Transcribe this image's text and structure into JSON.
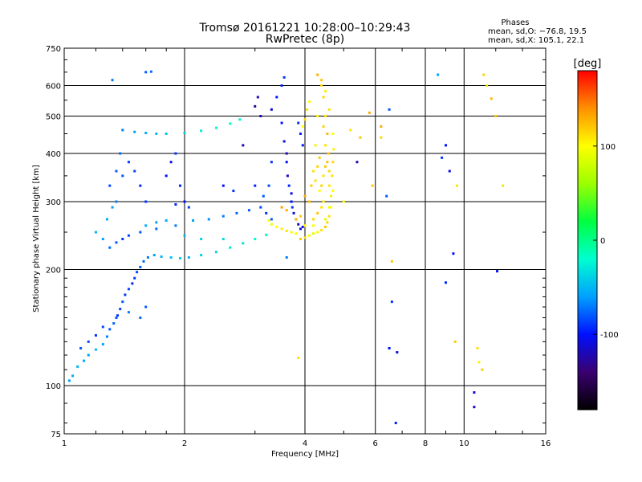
{
  "chart_data": {
    "type": "scatter",
    "title": "Tromsø 20161221 10:28:00–10:29:43",
    "subtitle": "RwPretec (8p)",
    "xlabel": "Frequency [MHz]",
    "ylabel": "Stationary phase Virtual Height [km]",
    "xscale": "log",
    "yscale": "log",
    "xlim": [
      1,
      16
    ],
    "ylim": [
      75,
      750
    ],
    "x_ticks": [
      1,
      2,
      4,
      6,
      8,
      10,
      16
    ],
    "y_ticks": [
      75,
      100,
      200,
      300,
      400,
      500,
      600,
      750
    ],
    "grid": true,
    "color_by": "phase",
    "colorbar": {
      "label": "[deg]",
      "range": [
        -180,
        180
      ],
      "ticks": [
        100,
        0,
        -100
      ],
      "colors": [
        "#000000",
        "#3a0070",
        "#0010ff",
        "#00a0ff",
        "#00ffd0",
        "#00ff40",
        "#9cff00",
        "#ffff00",
        "#ff9000",
        "#ff0000"
      ]
    },
    "stats": {
      "heading": "Phases",
      "o_mode": "mean, sd,O: −76.8, 19.5",
      "x_mode": "mean, sd,X: 105.1, 22.1"
    },
    "series": [
      {
        "values": [
          [
            1.03,
            103,
            -60
          ],
          [
            1.05,
            106,
            -55
          ],
          [
            1.08,
            112,
            -50
          ],
          [
            1.12,
            116,
            -55
          ],
          [
            1.15,
            120,
            -60
          ],
          [
            1.2,
            124,
            -45
          ],
          [
            1.25,
            128,
            -60
          ],
          [
            1.28,
            134,
            -70
          ],
          [
            1.3,
            140,
            -80
          ],
          [
            1.33,
            145,
            -75
          ],
          [
            1.36,
            152,
            -90
          ],
          [
            1.38,
            158,
            -85
          ],
          [
            1.4,
            165,
            -80
          ],
          [
            1.42,
            172,
            -90
          ],
          [
            1.45,
            178,
            -85
          ],
          [
            1.48,
            184,
            -95
          ],
          [
            1.5,
            190,
            -90
          ],
          [
            1.52,
            197,
            -85
          ],
          [
            1.55,
            203,
            -80
          ],
          [
            1.58,
            210,
            -75
          ],
          [
            1.62,
            215,
            -70
          ],
          [
            1.68,
            218,
            -60
          ],
          [
            1.75,
            216,
            -50
          ],
          [
            1.85,
            215,
            -45
          ],
          [
            1.95,
            214,
            -40
          ],
          [
            2.05,
            215,
            -50
          ],
          [
            2.2,
            218,
            -40
          ],
          [
            2.4,
            222,
            -35
          ],
          [
            2.6,
            228,
            -30
          ],
          [
            2.8,
            234,
            -30
          ],
          [
            3.0,
            240,
            -20
          ],
          [
            3.2,
            246,
            -10
          ],
          [
            3.1,
            500,
            -120
          ],
          [
            3.3,
            520,
            -110
          ],
          [
            3.4,
            560,
            -100
          ],
          [
            3.5,
            600,
            -95
          ],
          [
            3.55,
            630,
            -90
          ],
          [
            3.5,
            480,
            -100
          ],
          [
            3.55,
            430,
            -110
          ],
          [
            3.6,
            400,
            -120
          ],
          [
            3.6,
            380,
            -100
          ],
          [
            3.62,
            350,
            -110
          ],
          [
            3.65,
            330,
            -95
          ],
          [
            3.7,
            315,
            -105
          ],
          [
            3.7,
            300,
            -100
          ],
          [
            3.72,
            290,
            -90
          ],
          [
            3.75,
            280,
            -110
          ],
          [
            3.8,
            270,
            -100
          ],
          [
            3.85,
            262,
            -120
          ],
          [
            3.9,
            255,
            -110
          ],
          [
            3.95,
            258,
            -100
          ],
          [
            3.95,
            420,
            -100
          ],
          [
            3.9,
            450,
            -95
          ],
          [
            3.85,
            480,
            -90
          ],
          [
            3.2,
            280,
            -90
          ],
          [
            3.3,
            270,
            -80
          ],
          [
            3.1,
            290,
            -85
          ],
          [
            2.9,
            285,
            -80
          ],
          [
            2.7,
            280,
            -75
          ],
          [
            2.5,
            275,
            -70
          ],
          [
            2.3,
            270,
            -65
          ],
          [
            2.1,
            268,
            -60
          ],
          [
            1.9,
            260,
            -70
          ],
          [
            1.7,
            255,
            -75
          ],
          [
            1.55,
            250,
            -80
          ],
          [
            1.45,
            245,
            -85
          ],
          [
            1.4,
            240,
            -90
          ],
          [
            1.35,
            235,
            -80
          ],
          [
            1.3,
            228,
            -75
          ],
          [
            1.35,
            300,
            -70
          ],
          [
            1.4,
            350,
            -80
          ],
          [
            1.45,
            380,
            -90
          ],
          [
            1.5,
            360,
            -85
          ],
          [
            1.55,
            330,
            -95
          ],
          [
            1.6,
            300,
            -90
          ],
          [
            1.3,
            330,
            -85
          ],
          [
            1.35,
            360,
            -80
          ],
          [
            1.38,
            400,
            -75
          ],
          [
            1.8,
            350,
            -100
          ],
          [
            1.85,
            380,
            -110
          ],
          [
            1.9,
            400,
            -90
          ],
          [
            1.95,
            330,
            -95
          ],
          [
            2.0,
            300,
            -100
          ],
          [
            1.9,
            295,
            -95
          ],
          [
            2.05,
            290,
            -90
          ],
          [
            1.4,
            460,
            -70
          ],
          [
            1.5,
            455,
            -60
          ],
          [
            1.6,
            452,
            -55
          ],
          [
            1.7,
            450,
            -50
          ],
          [
            1.8,
            450,
            -45
          ],
          [
            2.0,
            452,
            -40
          ],
          [
            2.2,
            458,
            -30
          ],
          [
            2.4,
            466,
            -20
          ],
          [
            2.6,
            478,
            -15
          ],
          [
            2.75,
            490,
            -25
          ],
          [
            1.6,
            650,
            -80
          ],
          [
            1.65,
            652,
            -75
          ],
          [
            1.32,
            620,
            -70
          ],
          [
            3.6,
            215,
            -70
          ],
          [
            3.3,
            380,
            -90
          ],
          [
            3.25,
            330,
            -85
          ],
          [
            3.15,
            310,
            -80
          ],
          [
            3.0,
            330,
            -95
          ],
          [
            2.5,
            330,
            -100
          ],
          [
            2.65,
            320,
            -90
          ],
          [
            2.8,
            420,
            -120
          ],
          [
            3.0,
            530,
            -130
          ],
          [
            3.05,
            560,
            -120
          ],
          [
            1.45,
            155,
            -70
          ],
          [
            1.35,
            150,
            -80
          ],
          [
            1.25,
            142,
            -85
          ],
          [
            1.55,
            150,
            -75
          ],
          [
            1.6,
            160,
            -80
          ],
          [
            1.2,
            135,
            -90
          ],
          [
            1.15,
            130,
            -85
          ],
          [
            1.1,
            125,
            -80
          ],
          [
            1.6,
            260,
            -55
          ],
          [
            1.7,
            265,
            -60
          ],
          [
            1.8,
            268,
            -55
          ],
          [
            2.0,
            245,
            -50
          ],
          [
            2.2,
            240,
            -40
          ],
          [
            2.5,
            240,
            -35
          ],
          [
            1.25,
            240,
            -60
          ],
          [
            1.2,
            250,
            -50
          ],
          [
            1.28,
            270,
            -55
          ],
          [
            1.32,
            290,
            -60
          ],
          [
            3.9,
            240,
            120
          ],
          [
            4.0,
            242,
            110
          ],
          [
            4.1,
            245,
            100
          ],
          [
            4.2,
            248,
            90
          ],
          [
            4.3,
            250,
            100
          ],
          [
            4.4,
            253,
            110
          ],
          [
            4.5,
            258,
            120
          ],
          [
            4.55,
            265,
            115
          ],
          [
            4.6,
            275,
            110
          ],
          [
            4.65,
            290,
            100
          ],
          [
            4.65,
            310,
            105
          ],
          [
            4.6,
            330,
            110
          ],
          [
            4.6,
            360,
            115
          ],
          [
            4.58,
            400,
            120
          ],
          [
            4.55,
            450,
            125
          ],
          [
            4.5,
            500,
            110
          ],
          [
            4.45,
            560,
            115
          ],
          [
            4.4,
            620,
            120
          ],
          [
            4.3,
            640,
            130
          ],
          [
            4.4,
            600,
            110
          ],
          [
            3.8,
            248,
            100
          ],
          [
            3.7,
            250,
            95
          ],
          [
            3.6,
            252,
            110
          ],
          [
            3.5,
            255,
            105
          ],
          [
            3.4,
            258,
            100
          ],
          [
            3.3,
            262,
            95
          ],
          [
            3.25,
            268,
            100
          ],
          [
            4.0,
            260,
            110
          ],
          [
            4.2,
            270,
            115
          ],
          [
            4.3,
            280,
            120
          ],
          [
            4.4,
            290,
            110
          ],
          [
            4.45,
            300,
            105
          ],
          [
            4.35,
            320,
            100
          ],
          [
            4.25,
            340,
            110
          ],
          [
            4.3,
            370,
            115
          ],
          [
            4.35,
            390,
            120
          ],
          [
            4.1,
            300,
            125
          ],
          [
            4.0,
            310,
            130
          ],
          [
            4.15,
            330,
            120
          ],
          [
            4.2,
            360,
            110
          ],
          [
            4.25,
            420,
            105
          ],
          [
            4.0,
            490,
            115
          ],
          [
            4.05,
            520,
            110
          ],
          [
            4.1,
            545,
            100
          ],
          [
            3.95,
            470,
            100
          ],
          [
            4.2,
            260,
            95
          ],
          [
            4.5,
            270,
            90
          ],
          [
            4.6,
            290,
            95
          ],
          [
            4.7,
            320,
            100
          ],
          [
            4.68,
            350,
            110
          ],
          [
            4.7,
            380,
            115
          ],
          [
            4.72,
            410,
            105
          ],
          [
            4.7,
            450,
            100
          ],
          [
            4.6,
            520,
            110
          ],
          [
            4.5,
            580,
            105
          ],
          [
            3.6,
            285,
            130
          ],
          [
            3.5,
            290,
            135
          ],
          [
            3.8,
            270,
            125
          ],
          [
            3.9,
            275,
            120
          ],
          [
            4.4,
            330,
            115
          ],
          [
            4.45,
            350,
            110
          ],
          [
            4.5,
            370,
            120
          ],
          [
            4.55,
            380,
            125
          ],
          [
            4.5,
            420,
            110
          ],
          [
            4.45,
            470,
            115
          ],
          [
            4.3,
            500,
            105
          ],
          [
            5.0,
            300,
            100
          ],
          [
            5.2,
            460,
            110
          ],
          [
            5.5,
            440,
            120
          ],
          [
            5.8,
            510,
            130
          ],
          [
            6.6,
            210,
            120
          ],
          [
            4.0,
            260,
            100
          ],
          [
            3.85,
            118,
            110
          ],
          [
            6.2,
            440,
            115
          ]
        ]
      },
      {
        "values": [
          [
            6.5,
            520,
            -80
          ],
          [
            6.6,
            165,
            -90
          ],
          [
            6.5,
            125,
            -100
          ],
          [
            6.8,
            122,
            -110
          ],
          [
            6.75,
            80,
            -95
          ],
          [
            8.6,
            640,
            -60
          ],
          [
            8.8,
            390,
            -90
          ],
          [
            9.0,
            420,
            -100
          ],
          [
            9.2,
            360,
            -110
          ],
          [
            9.0,
            185,
            -95
          ],
          [
            9.4,
            220,
            -100
          ],
          [
            9.5,
            130,
            120
          ],
          [
            9.6,
            330,
            110
          ],
          [
            10.8,
            125,
            110
          ],
          [
            10.9,
            115,
            105
          ],
          [
            11.1,
            110,
            120
          ],
          [
            11.2,
            640,
            115
          ],
          [
            11.4,
            600,
            110
          ],
          [
            12.0,
            500,
            120
          ],
          [
            11.7,
            555,
            125
          ],
          [
            12.1,
            198,
            -100
          ],
          [
            10.6,
            96,
            -110
          ],
          [
            10.6,
            88,
            -120
          ],
          [
            12.5,
            330,
            110
          ],
          [
            6.2,
            470,
            130
          ],
          [
            6.4,
            310,
            -80
          ],
          [
            5.9,
            330,
            120
          ],
          [
            5.4,
            380,
            -120
          ]
        ]
      }
    ]
  }
}
